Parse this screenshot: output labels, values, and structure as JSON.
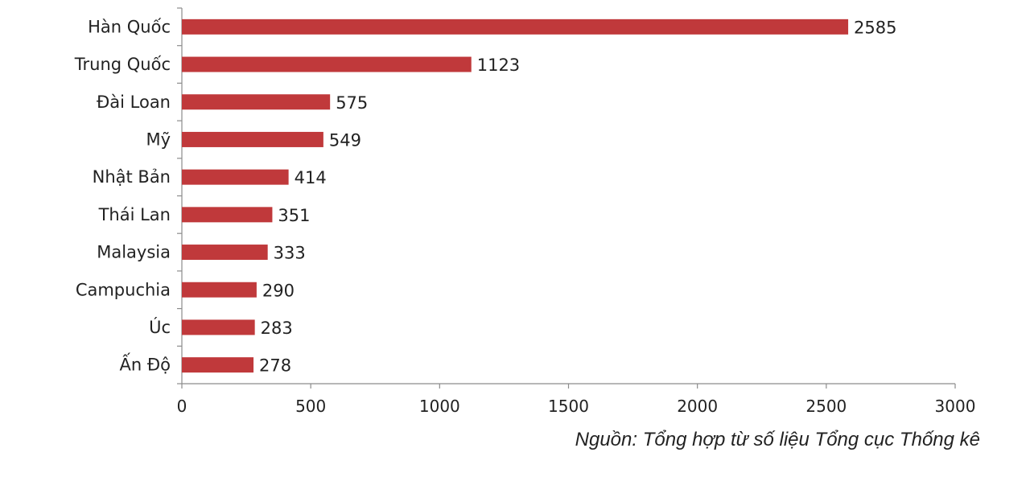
{
  "chart_data": {
    "type": "bar",
    "orientation": "horizontal",
    "categories": [
      "Hàn Quốc",
      "Trung Quốc",
      "Đài Loan",
      "Mỹ",
      "Nhật Bản",
      "Thái Lan",
      "Malaysia",
      "Campuchia",
      "Úc",
      "Ấn Độ"
    ],
    "values": [
      2585,
      1123,
      575,
      549,
      414,
      351,
      333,
      290,
      283,
      278
    ],
    "x_ticks": [
      "0",
      "500",
      "1000",
      "1500",
      "2000",
      "2500",
      "3000"
    ],
    "xlim": [
      0,
      3000
    ],
    "title": "",
    "xlabel": "",
    "ylabel": "",
    "grid": false,
    "legend": "none",
    "data_labels": true,
    "colors": {
      "bar": "#c0393b",
      "axis": "#8c8c8c",
      "text": "#222222"
    }
  },
  "source_note": "Nguồn: Tổng hợp từ số liệu Tổng cục Thống kê"
}
